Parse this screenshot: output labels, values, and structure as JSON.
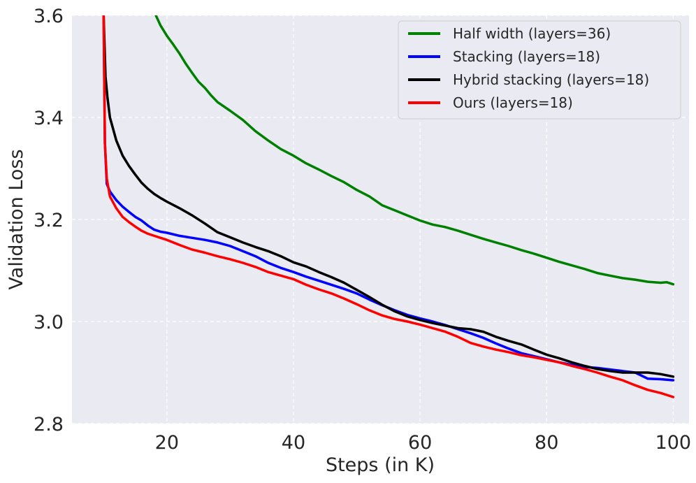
{
  "chart_data": {
    "type": "line",
    "xlabel": "Steps (in K)",
    "ylabel": "Validation Loss",
    "xlim": [
      5,
      102.5
    ],
    "ylim": [
      2.8,
      3.6
    ],
    "xticks": [
      20,
      40,
      60,
      80,
      100
    ],
    "yticks": [
      2.8,
      3.0,
      3.2,
      3.4,
      3.6
    ],
    "xtick_labels": [
      "20",
      "40",
      "60",
      "80",
      "100"
    ],
    "ytick_labels": [
      "2.8",
      "3.0",
      "3.2",
      "3.4",
      "3.6"
    ],
    "grid": true,
    "legend_position": "top-right",
    "series": [
      {
        "name": "Half width (layers=36)",
        "color": "#008000",
        "x": [
          18,
          19,
          20,
          21,
          22,
          23,
          24,
          25,
          26,
          27,
          28,
          30,
          32,
          34,
          36,
          38,
          40,
          42,
          44,
          46,
          48,
          50,
          52,
          54,
          56,
          58,
          60,
          62,
          64,
          66,
          68,
          70,
          72,
          74,
          76,
          78,
          80,
          82,
          84,
          86,
          88,
          90,
          92,
          94,
          96,
          98,
          99,
          100
        ],
        "y": [
          3.607,
          3.58,
          3.56,
          3.543,
          3.525,
          3.505,
          3.487,
          3.47,
          3.458,
          3.443,
          3.43,
          3.413,
          3.395,
          3.373,
          3.355,
          3.338,
          3.325,
          3.31,
          3.298,
          3.285,
          3.273,
          3.258,
          3.245,
          3.228,
          3.218,
          3.208,
          3.198,
          3.19,
          3.185,
          3.178,
          3.17,
          3.162,
          3.155,
          3.148,
          3.14,
          3.133,
          3.125,
          3.117,
          3.11,
          3.103,
          3.095,
          3.09,
          3.085,
          3.082,
          3.078,
          3.076,
          3.077,
          3.073
        ]
      },
      {
        "name": "Stacking (layers=18)",
        "color": "#0000ff",
        "x": [
          10,
          10.2,
          10.5,
          11,
          12,
          13,
          14,
          15,
          16,
          17,
          18,
          19,
          20,
          22,
          24,
          26,
          28,
          30,
          32,
          34,
          36,
          38,
          40,
          42,
          44,
          46,
          48,
          50,
          52,
          54,
          56,
          58,
          60,
          62,
          64,
          66,
          68,
          70,
          72,
          74,
          76,
          78,
          80,
          82,
          84,
          86,
          88,
          90,
          92,
          94,
          96,
          98,
          100
        ],
        "y": [
          3.6,
          3.35,
          3.27,
          3.255,
          3.238,
          3.225,
          3.215,
          3.205,
          3.198,
          3.188,
          3.18,
          3.176,
          3.174,
          3.168,
          3.164,
          3.16,
          3.155,
          3.148,
          3.138,
          3.128,
          3.115,
          3.105,
          3.097,
          3.088,
          3.08,
          3.072,
          3.064,
          3.055,
          3.043,
          3.032,
          3.022,
          3.013,
          3.006,
          3.0,
          2.993,
          2.985,
          2.977,
          2.968,
          2.957,
          2.947,
          2.938,
          2.932,
          2.926,
          2.92,
          2.915,
          2.911,
          2.909,
          2.906,
          2.903,
          2.9,
          2.888,
          2.887,
          2.885
        ]
      },
      {
        "name": "Hybrid stacking (layers=18)",
        "color": "#000000",
        "x": [
          10,
          10.3,
          10.6,
          11,
          12,
          13,
          14,
          15,
          16,
          17,
          18,
          19,
          20,
          22,
          24,
          26,
          28,
          30,
          32,
          34,
          36,
          38,
          40,
          42,
          44,
          46,
          48,
          50,
          52,
          54,
          56,
          58,
          60,
          62,
          64,
          66,
          68,
          70,
          72,
          74,
          76,
          78,
          80,
          82,
          84,
          86,
          88,
          90,
          92,
          94,
          96,
          98,
          100
        ],
        "y": [
          3.6,
          3.48,
          3.44,
          3.4,
          3.355,
          3.325,
          3.305,
          3.288,
          3.272,
          3.26,
          3.25,
          3.242,
          3.235,
          3.222,
          3.208,
          3.192,
          3.175,
          3.165,
          3.155,
          3.146,
          3.138,
          3.128,
          3.116,
          3.108,
          3.097,
          3.087,
          3.076,
          3.062,
          3.048,
          3.033,
          3.02,
          3.01,
          3.003,
          2.997,
          2.992,
          2.987,
          2.985,
          2.98,
          2.97,
          2.962,
          2.955,
          2.945,
          2.935,
          2.928,
          2.92,
          2.913,
          2.907,
          2.903,
          2.9,
          2.9,
          2.9,
          2.897,
          2.892
        ]
      },
      {
        "name": "Ours (layers=18)",
        "color": "#ff0000",
        "x": [
          10,
          10.2,
          10.5,
          11,
          12,
          13,
          14,
          15,
          16,
          17,
          18,
          19,
          20,
          22,
          24,
          26,
          28,
          30,
          32,
          34,
          36,
          38,
          40,
          42,
          44,
          46,
          48,
          50,
          52,
          54,
          56,
          58,
          60,
          62,
          64,
          66,
          68,
          70,
          72,
          74,
          76,
          78,
          80,
          82,
          84,
          86,
          88,
          90,
          92,
          94,
          96,
          98,
          100
        ],
        "y": [
          3.6,
          3.35,
          3.28,
          3.245,
          3.222,
          3.205,
          3.195,
          3.186,
          3.178,
          3.172,
          3.168,
          3.164,
          3.16,
          3.15,
          3.141,
          3.135,
          3.128,
          3.122,
          3.115,
          3.107,
          3.097,
          3.09,
          3.083,
          3.072,
          3.063,
          3.055,
          3.045,
          3.034,
          3.022,
          3.012,
          3.005,
          3.0,
          2.994,
          2.987,
          2.98,
          2.97,
          2.958,
          2.951,
          2.945,
          2.94,
          2.934,
          2.93,
          2.925,
          2.92,
          2.913,
          2.907,
          2.9,
          2.892,
          2.885,
          2.875,
          2.866,
          2.86,
          2.852
        ]
      }
    ]
  }
}
